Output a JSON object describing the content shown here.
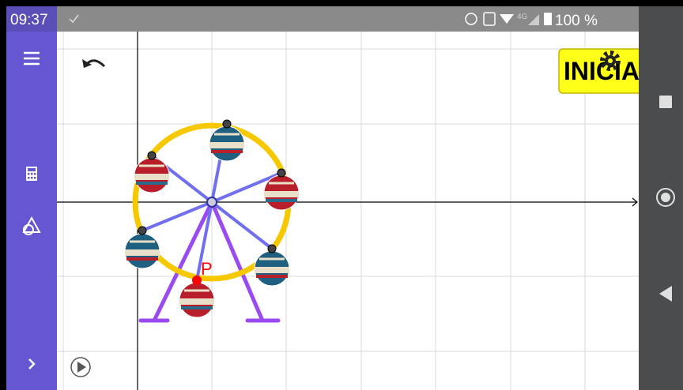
{
  "status_bar": {
    "time": "09:37",
    "network": "4G",
    "battery": "100 %"
  },
  "button": {
    "label": "INICIA"
  },
  "point": {
    "label": "P"
  }
}
